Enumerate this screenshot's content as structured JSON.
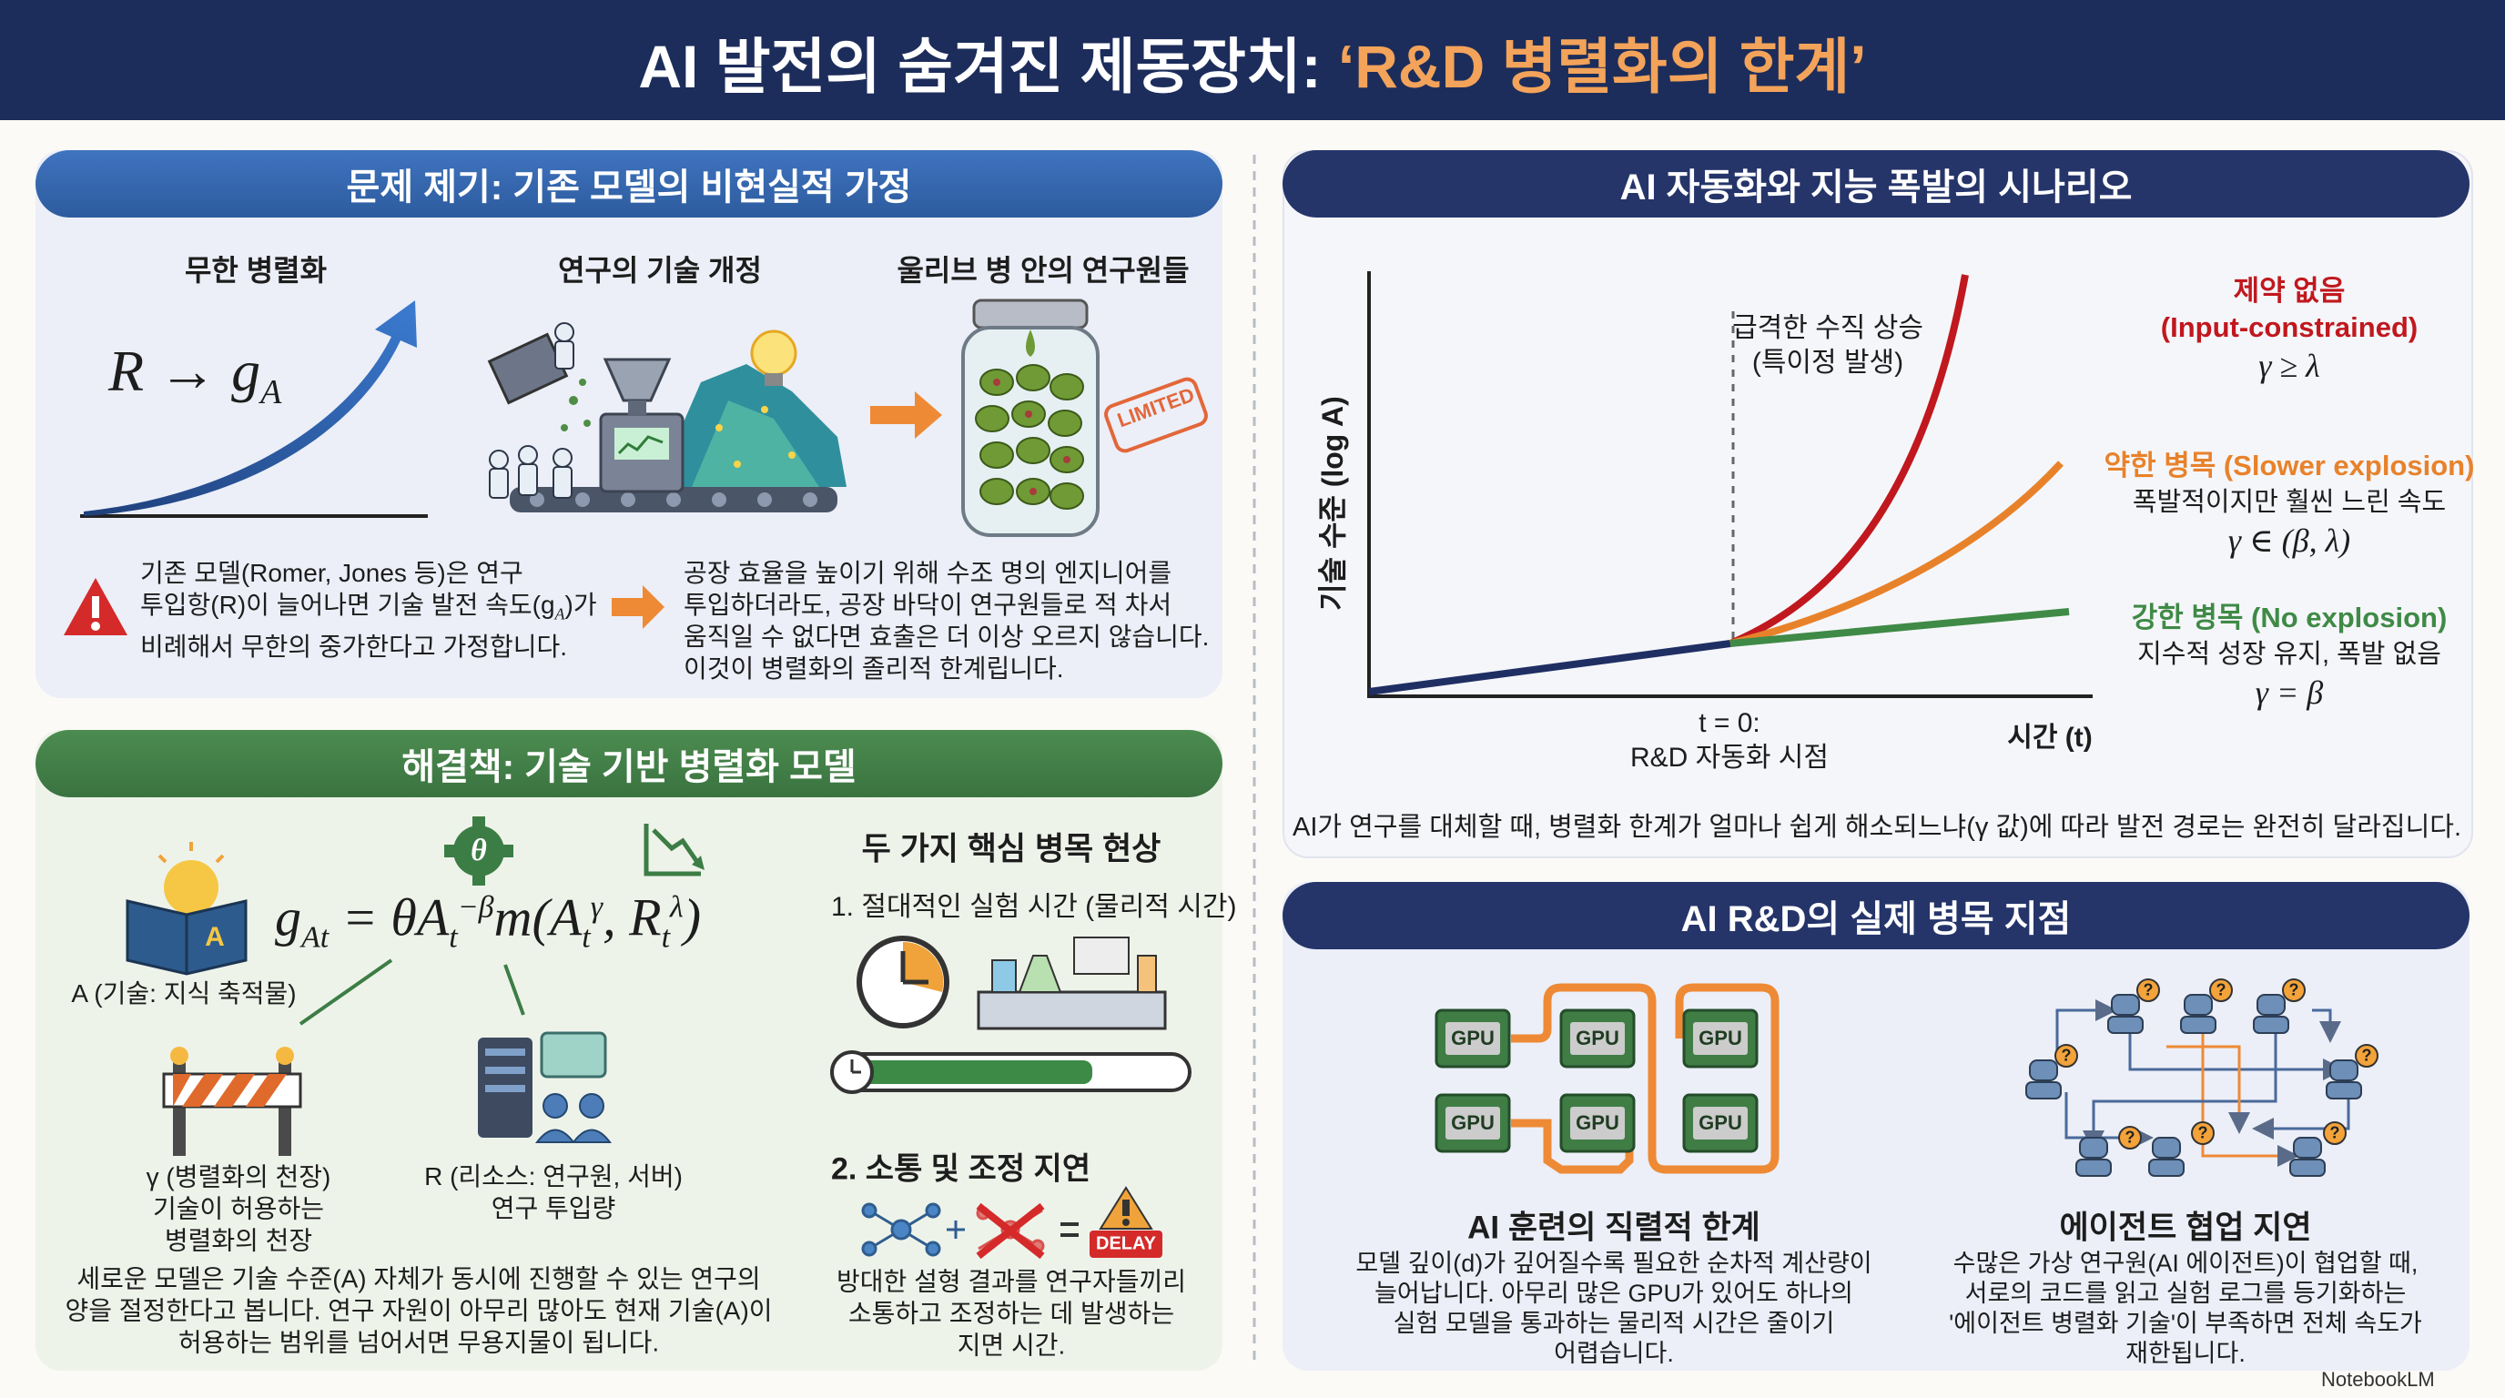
{
  "header": {
    "title_main": "AI 발전의 숨겨진 제동장치: ",
    "title_highlight": "‘R&D 병렬화의 한계’"
  },
  "problem": {
    "title": "문제 제기: 기존 모델의 비현실적 가정",
    "items": [
      {
        "label": "무한 병렬화",
        "formula": [
          "R → g",
          "A"
        ]
      },
      {
        "label": "연구의 기술 개정"
      },
      {
        "label": "울리브 병 안의 연구원들",
        "stamp": "LIMITED"
      }
    ],
    "left_text": [
      "기존 모델(Romer, Jones 등)은 연구",
      "투입항(R)이 늘어나면 기술 발전 속도(g",
      "A",
      ")가",
      "비례해서 무한의 중가한다고 가정합니다."
    ],
    "right_text": [
      "공장 효율을 높이기 위해 수조 명의 엔지니어를",
      "투입하더라도, 공장 바닥이 연구원들로 적 차서",
      "움직일 수 없다면 효출은 더 이상 오르지 않습니다.",
      "이것이 병렬화의 졸리적 한계립니다."
    ]
  },
  "solution": {
    "title": "해결책: 기술 기반 병렬화 모델",
    "book_letter": "A",
    "gear": "θ",
    "formula": [
      "g",
      "At",
      " = θA",
      "t",
      "−β",
      "m(A",
      "t",
      "γ",
      ", R",
      "t",
      "λ",
      ")"
    ],
    "a_label": "A (기술: 지식 축적물)",
    "gamma_label": [
      "γ (병렬화의 천장)",
      "기술이 허용하는",
      "병렬화의 천장"
    ],
    "r_label": [
      "R (리소스: 연구원, 서버)",
      "연구 투입량"
    ],
    "paragraph": [
      "세로운 모델은 기술 수준(A) 자체가 동시에 진행할 수 있는 연구의",
      "양을 절정한다고 봅니다. 연구 자원이 아무리 많아도 현재 기술(A)이",
      "허용하는 범위를 넘어서면 무용지물이 됩니다."
    ],
    "bottlenecks": {
      "title": "두 가지 핵심 병목 현상",
      "first": "1. 절대적인 실험 시간 (물리적 시간)",
      "second": "2. 소통 및 조정 지연",
      "delay": "DELAY",
      "text": [
        "방대한 설형 결과를 연구자들끼리",
        "소통하고 조정하는 데 발생하는",
        "지면 시간."
      ]
    }
  },
  "scenario": {
    "title": "AI 자동화와 지능 폭발의 시나리오",
    "y_label": "기술 수준 (log A)",
    "x_label": "시간 (t)",
    "origin_label": [
      "t = 0:",
      "R&D 자동화 시점"
    ],
    "annotation": [
      "급격한 수직 상승",
      "(특이정 발생)"
    ],
    "cases": [
      {
        "name": "제약 없음",
        "detail": "(Input-constrained)",
        "condition": "γ ≥ λ",
        "color": "#c0181e"
      },
      {
        "name": "약한 병목 (Slower explosion)",
        "detail": "폭발적이지만 훨씬 느린 속도",
        "condition": "γ ∈ (β, λ)",
        "color": "#e8822a"
      },
      {
        "name": "강한 병목 (No explosion)",
        "detail": "지수적 성장 유지, 폭발 없음",
        "condition": "γ = β",
        "color": "#3f8a46"
      }
    ],
    "caption": "AI가 연구를 대체할 때, 병렬화 한계가 얼마나 쉽게 해소되느냐(γ 값)에 따라 발전 경로는 완전히 달라집니다."
  },
  "bottleneck": {
    "title": "AI R&D의 실제 병목 지점",
    "gpu_label": "GPU",
    "question": "?",
    "left": {
      "title": "AI 훈련의 직렬적 한계",
      "text": [
        "모델 깊이(d)가 깊어질수록 필요한 순차적 계산량이",
        "늘어납니다. 아무리 많은 GPU가 있어도 하나의",
        "실험 모델을 통과하는 물리적 시간은 줄이기",
        "어렵습니다."
      ]
    },
    "right": {
      "title": "에이전트 협업 지연",
      "text": [
        "수많은 가상 연구원(AI 에이전트)이 협업할 때,",
        "서로의 코드를 읽고 실험 로그를 등기화하는",
        "'에이전트 병렬화 기술'이 부족하면 전체 속도가",
        "재한됩니다."
      ]
    }
  },
  "footer": "NotebookLM"
}
